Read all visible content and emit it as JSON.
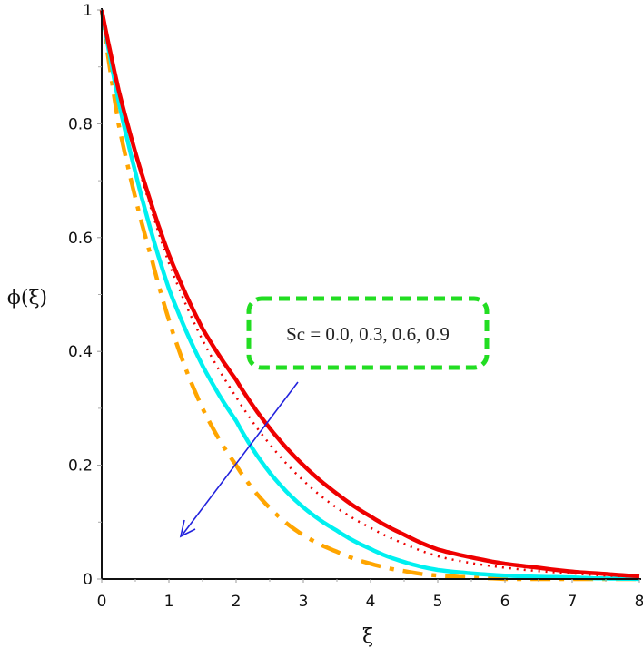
{
  "chart_data": {
    "type": "line",
    "title": "",
    "xlabel": "ξ",
    "ylabel": "ϕ(ξ)",
    "xlim": [
      0,
      8
    ],
    "ylim": [
      0,
      1
    ],
    "grid": false,
    "x_ticks": [
      "0",
      "1",
      "2",
      "3",
      "4",
      "5",
      "6",
      "7",
      "8"
    ],
    "y_ticks": [
      "0",
      "0.2",
      "0.4",
      "0.6",
      "0.8",
      "1"
    ],
    "annotation": {
      "text": "Sc = 0.0, 0.3, 0.6, 0.9",
      "box_color": "#22dd22",
      "arrow_color": "#2222dd",
      "arrow_direction": "increasing Sc decreases ϕ"
    },
    "x": [
      0,
      0.25,
      0.5,
      0.75,
      1,
      1.5,
      2,
      2.5,
      3,
      3.5,
      4,
      4.5,
      5,
      5.5,
      6,
      6.5,
      7,
      7.5,
      8
    ],
    "series": [
      {
        "name": "Sc = 0.0",
        "color": "#ee0000",
        "style": "solid",
        "values": [
          1.0,
          0.86,
          0.75,
          0.655,
          0.57,
          0.44,
          0.35,
          0.265,
          0.2,
          0.15,
          0.11,
          0.078,
          0.052,
          0.038,
          0.027,
          0.02,
          0.013,
          0.009,
          0.005
        ]
      },
      {
        "name": "Sc = 0.3",
        "color": "#ee0000",
        "style": "dotted",
        "values": [
          1.0,
          0.855,
          0.745,
          0.645,
          0.555,
          0.42,
          0.32,
          0.237,
          0.173,
          0.125,
          0.09,
          0.062,
          0.04,
          0.028,
          0.02,
          0.014,
          0.01,
          0.006,
          0.004
        ]
      },
      {
        "name": "Sc = 0.6",
        "color": "#00f0f0",
        "style": "solid",
        "values": [
          1.0,
          0.84,
          0.715,
          0.605,
          0.51,
          0.375,
          0.278,
          0.187,
          0.126,
          0.085,
          0.053,
          0.03,
          0.016,
          0.01,
          0.006,
          0.004,
          0.003,
          0.001,
          0.0
        ]
      },
      {
        "name": "Sc = 0.9",
        "color": "#ffa500",
        "style": "dashdot",
        "values": [
          1.0,
          0.8,
          0.67,
          0.56,
          0.455,
          0.3,
          0.2,
          0.125,
          0.077,
          0.048,
          0.027,
          0.014,
          0.006,
          0.003,
          0.0,
          0.0,
          0.0,
          0.0,
          0.0
        ]
      }
    ]
  }
}
